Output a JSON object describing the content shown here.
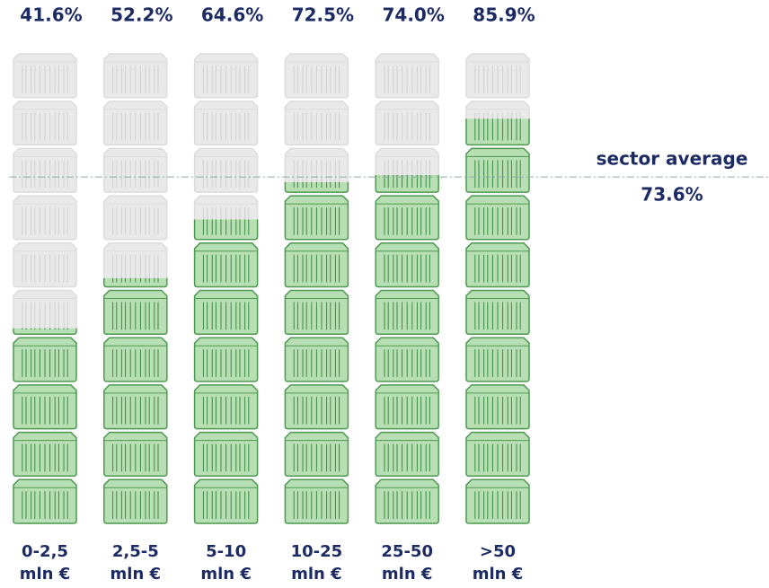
{
  "chart_data": {
    "type": "pictogram",
    "categories": [
      [
        "0-2,5",
        "mln €"
      ],
      [
        "2,5-5",
        "mln €"
      ],
      [
        "5-10",
        "mln €"
      ],
      [
        "10-25",
        "mln €"
      ],
      [
        "25-50",
        "mln €"
      ],
      [
        ">50",
        "mln €"
      ]
    ],
    "values": [
      41.6,
      52.2,
      64.6,
      72.5,
      74.0,
      85.9
    ],
    "value_labels": [
      "41.6%",
      "52.2%",
      "64.6%",
      "72.5%",
      "74.0%",
      "85.9%"
    ],
    "ylim": [
      0,
      100
    ],
    "color": "#b7dfb3",
    "reference": {
      "label": "sector average",
      "value": 73.6,
      "value_label": "73.6%"
    }
  }
}
